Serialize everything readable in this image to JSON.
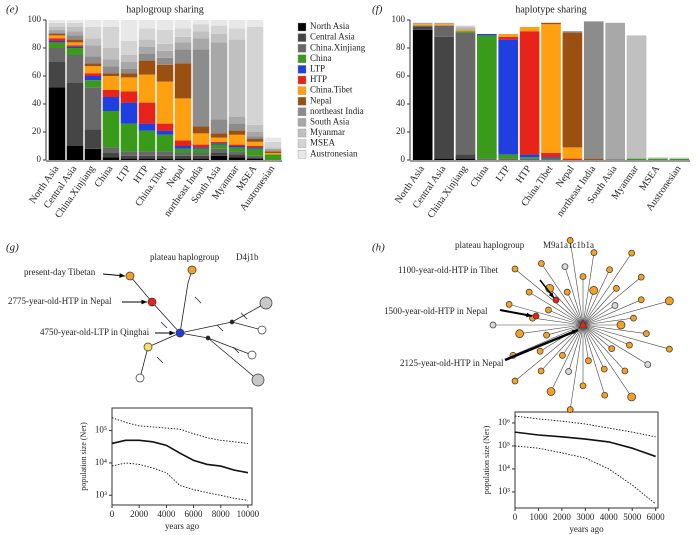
{
  "chart_data": [
    {
      "type": "bar",
      "panel": "(e)",
      "title": "haplogroup sharing",
      "categories": [
        "North Asia",
        "Central Asia",
        "China.Xinjiang",
        "China",
        "LTP",
        "HTP",
        "China.Tibet",
        "Nepal",
        "northeast India",
        "South Asia",
        "Myanmar",
        "MSEA",
        "Austronesian"
      ],
      "category_colors": [
        "#666666",
        "#666666",
        "#666666",
        "#3a9a1a",
        "#1f3fe0",
        "#e8231a",
        "#ff9a10",
        "#666666",
        "#666666",
        "#666666",
        "#666666",
        "#666666",
        "#666666"
      ],
      "ylim": [
        0,
        100
      ],
      "yticks": [
        0,
        20,
        40,
        60,
        80,
        100
      ],
      "legend": "right",
      "series": [
        {
          "name": "North Asia",
          "color": "#000000",
          "values": [
            52,
            10,
            8,
            2,
            1,
            1,
            1,
            1,
            1,
            3,
            2,
            1,
            0
          ]
        },
        {
          "name": "Central Asia",
          "color": "#454545",
          "values": [
            18,
            45,
            14,
            3,
            2,
            2,
            2,
            2,
            2,
            2,
            2,
            1,
            0
          ]
        },
        {
          "name": "China.Xinjiang",
          "color": "#686868",
          "values": [
            10,
            20,
            30,
            4,
            3,
            3,
            3,
            2,
            2,
            3,
            2,
            1,
            0
          ]
        },
        {
          "name": "China",
          "color": "#3a9a1a",
          "values": [
            4,
            5,
            5,
            26,
            20,
            15,
            12,
            3,
            3,
            3,
            3,
            5,
            4
          ]
        },
        {
          "name": "LTP",
          "color": "#1f3fe0",
          "values": [
            1,
            1,
            3,
            10,
            15,
            5,
            3,
            2,
            1,
            1,
            1,
            1,
            0
          ]
        },
        {
          "name": "HTP",
          "color": "#e8231a",
          "values": [
            2,
            1,
            2,
            5,
            8,
            15,
            5,
            4,
            2,
            1,
            1,
            1,
            0
          ]
        },
        {
          "name": "China.Tibet",
          "color": "#ffa010",
          "values": [
            2,
            2,
            5,
            10,
            10,
            20,
            30,
            30,
            8,
            3,
            7,
            3,
            1
          ]
        },
        {
          "name": "Nepal",
          "color": "#9a5010",
          "values": [
            1,
            2,
            2,
            2,
            3,
            10,
            12,
            25,
            5,
            3,
            3,
            2,
            1
          ]
        },
        {
          "name": "northeast India",
          "color": "#8c8c8c",
          "values": [
            1,
            3,
            5,
            5,
            3,
            5,
            5,
            10,
            55,
            10,
            5,
            2,
            1
          ]
        },
        {
          "name": "South Asia",
          "color": "#a8a8a8",
          "values": [
            2,
            3,
            8,
            5,
            5,
            5,
            5,
            5,
            8,
            55,
            5,
            3,
            1
          ]
        },
        {
          "name": "Myanmar",
          "color": "#c0c0c0",
          "values": [
            2,
            3,
            5,
            8,
            5,
            5,
            5,
            4,
            5,
            6,
            55,
            5,
            1
          ]
        },
        {
          "name": "MSEA",
          "color": "#d4d4d4",
          "values": [
            3,
            3,
            8,
            15,
            10,
            8,
            10,
            6,
            5,
            6,
            8,
            70,
            4
          ]
        },
        {
          "name": "Austronesian",
          "color": "#e8e8e8",
          "values": [
            2,
            2,
            5,
            5,
            15,
            6,
            7,
            6,
            3,
            4,
            6,
            5,
            3
          ]
        }
      ]
    },
    {
      "type": "bar",
      "panel": "(f)",
      "title": "haplotype sharing",
      "categories": [
        "North Asia",
        "Central Asia",
        "China.Xinjiang",
        "China",
        "LTP",
        "HTP",
        "China.Tibet",
        "Nepal",
        "northeast India",
        "South Asia",
        "Myanmar",
        "MSEA",
        "Austronesian"
      ],
      "category_colors": [
        "#666666",
        "#666666",
        "#666666",
        "#3a9a1a",
        "#1f3fe0",
        "#e8231a",
        "#ff9a10",
        "#666666",
        "#666666",
        "#666666",
        "#666666",
        "#666666",
        "#666666"
      ],
      "ylim": [
        0,
        100
      ],
      "yticks": [
        0,
        20,
        40,
        60,
        80,
        100
      ],
      "series": [
        {
          "color": "#000000",
          "values": [
            93,
            1,
            1,
            0,
            0,
            0,
            0,
            0,
            0,
            0,
            0,
            0,
            0
          ]
        },
        {
          "color": "#454545",
          "values": [
            2,
            87,
            3,
            0,
            0,
            0,
            0,
            0,
            0,
            0,
            0,
            0,
            0
          ]
        },
        {
          "color": "#686868",
          "values": [
            1,
            8,
            87,
            1,
            1,
            1,
            0,
            0,
            0,
            0,
            0,
            0,
            0
          ]
        },
        {
          "color": "#3a9a1a",
          "values": [
            0,
            0,
            1,
            88,
            3,
            1,
            1,
            0,
            0,
            0,
            1,
            1,
            1
          ]
        },
        {
          "color": "#1f3fe0",
          "values": [
            0,
            0,
            0,
            1,
            82,
            2,
            1,
            0,
            0,
            0,
            0,
            0,
            0
          ]
        },
        {
          "color": "#e8231a",
          "values": [
            0,
            0,
            0,
            0,
            2,
            88,
            3,
            1,
            0,
            0,
            0,
            0,
            0
          ]
        },
        {
          "color": "#ffa010",
          "values": [
            1,
            1,
            1,
            0,
            2,
            3,
            92,
            8,
            0,
            0,
            0,
            0,
            0
          ]
        },
        {
          "color": "#9a5010",
          "values": [
            0,
            0,
            0,
            0,
            0,
            0,
            1,
            82,
            1,
            0,
            0,
            0,
            0
          ]
        },
        {
          "color": "#8c8c8c",
          "values": [
            0,
            0,
            0,
            0,
            0,
            0,
            0,
            1,
            98,
            1,
            0,
            0,
            0
          ]
        },
        {
          "color": "#a8a8a8",
          "values": [
            1,
            1,
            1,
            0,
            0,
            0,
            0,
            0,
            0,
            97,
            0,
            0,
            0
          ]
        },
        {
          "color": "#c0c0c0",
          "values": [
            0,
            0,
            1,
            0,
            0,
            0,
            0,
            0,
            0,
            0,
            88,
            0,
            0
          ]
        },
        {
          "color": "#d4d4d4",
          "values": [
            0,
            0,
            1,
            0,
            0,
            0,
            0,
            0,
            0,
            0,
            0,
            1,
            0
          ]
        },
        {
          "color": "#e8e8e8",
          "values": [
            0,
            0,
            0,
            0,
            0,
            0,
            0,
            0,
            0,
            0,
            0,
            0,
            1
          ]
        }
      ]
    },
    {
      "type": "line",
      "panel": "(g)",
      "network": {
        "title": "plateau haplogroup",
        "haplogroup": "D4j1b",
        "annotations": [
          "present-day Tibetan",
          "2775-year-old-HTP in Nepal",
          "4750-year-old-LTP in Qinghai"
        ]
      },
      "x_label": "years ago",
      "y_label": "population size (Neτ)",
      "log_y": true,
      "x": [
        0,
        1000,
        2000,
        3000,
        4000,
        5000,
        6000,
        7000,
        8000,
        9000,
        10000
      ],
      "xlim": [
        0,
        10300
      ],
      "xticks": [
        0,
        2000,
        4000,
        6000,
        8000,
        10000
      ],
      "ylim": [
        500,
        500000
      ],
      "yticks": [
        {
          "value": 1000,
          "label": "10³"
        },
        {
          "value": 10000,
          "label": "10⁴"
        },
        {
          "value": 100000,
          "label": "10⁵"
        }
      ],
      "series": [
        {
          "style": "dotted",
          "values": [
            250000,
            180000,
            140000,
            130000,
            120000,
            110000,
            80000,
            60000,
            50000,
            45000,
            40000
          ]
        },
        {
          "style": "solid",
          "values": [
            40000,
            50000,
            50000,
            45000,
            35000,
            20000,
            12000,
            9000,
            8000,
            6000,
            5000
          ]
        },
        {
          "style": "dotted",
          "values": [
            8000,
            10000,
            9000,
            7000,
            5000,
            2000,
            1500,
            1200,
            1000,
            800,
            700
          ]
        }
      ]
    },
    {
      "type": "line",
      "panel": "(h)",
      "network": {
        "title": "plateau haplogroup",
        "haplogroup": "M9a1a1c1b1a",
        "annotations": [
          "1100-year-old-HTP in Tibet",
          "1500-year-old-HTP in Nepal",
          "2125-year-old-HTP in Nepal"
        ]
      },
      "x_label": "years ago",
      "y_label": "population size (Neτ)",
      "log_y": true,
      "x": [
        0,
        1000,
        2000,
        3000,
        4000,
        5000,
        6000
      ],
      "xlim": [
        0,
        6100
      ],
      "xticks": [
        0,
        1000,
        2000,
        3000,
        4000,
        5000,
        6000
      ],
      "ylim": [
        200,
        3000000
      ],
      "yticks": [
        {
          "value": 1000,
          "label": "10³"
        },
        {
          "value": 10000,
          "label": "10⁴"
        },
        {
          "value": 100000,
          "label": "10⁵"
        },
        {
          "value": 1000000,
          "label": "10⁶"
        }
      ],
      "series": [
        {
          "style": "dotted",
          "values": [
            2000000,
            1500000,
            1200000,
            900000,
            600000,
            400000,
            250000
          ]
        },
        {
          "style": "solid",
          "values": [
            400000,
            300000,
            250000,
            200000,
            150000,
            80000,
            35000
          ]
        },
        {
          "style": "dotted",
          "values": [
            100000,
            80000,
            50000,
            30000,
            10000,
            2000,
            300
          ]
        }
      ]
    }
  ]
}
